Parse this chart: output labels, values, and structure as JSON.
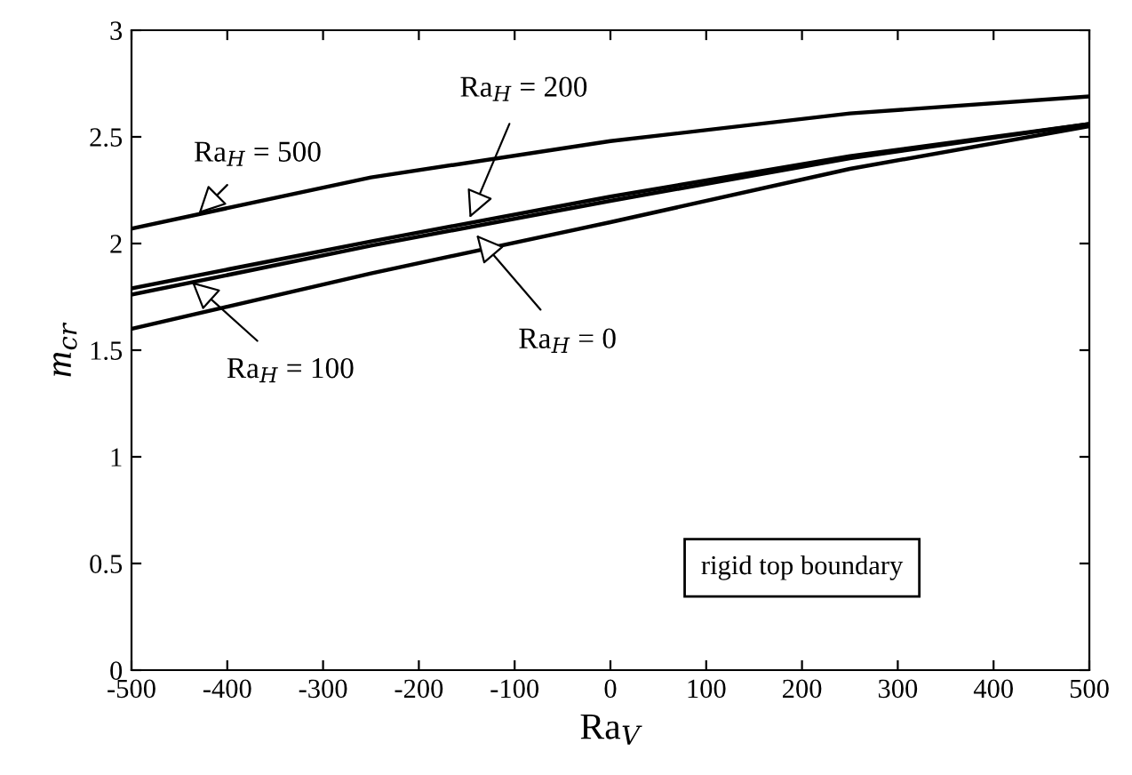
{
  "chart_data": {
    "type": "line",
    "xlabel": "Ra$_{V}$",
    "ylabel": "m$_{cr}$",
    "x": [
      -500,
      -250,
      0,
      250,
      500
    ],
    "series": [
      {
        "color": "#000000",
        "values": [
          2.07,
          2.31,
          2.48,
          2.61,
          2.69
        ]
      },
      {
        "color": "#000000",
        "values": [
          1.79,
          2.01,
          2.22,
          2.41,
          2.56
        ]
      },
      {
        "color": "#000000",
        "values": [
          1.76,
          1.99,
          2.2,
          2.4,
          2.56
        ]
      },
      {
        "color": "#000000",
        "values": [
          1.6,
          1.86,
          2.1,
          2.35,
          2.55
        ]
      }
    ],
    "annotations": [
      {
        "text": "Ra$_{H}$ = 500",
        "x": -430,
        "y": 2.14
      },
      {
        "text": "Ra$_{H}$ = 200",
        "x": -147,
        "y": 2.12
      },
      {
        "text": "Ra$_{H}$ = 100",
        "x": -437,
        "y": 1.82
      },
      {
        "text": "Ra$_{H}$ = 0",
        "x": -140,
        "y": 2.04
      },
      "rigid top boundary"
    ],
    "xlim": [
      -500,
      500
    ],
    "ylim": [
      0,
      3
    ],
    "xticks": [
      -500,
      -400,
      -300,
      -200,
      -100,
      0,
      100,
      200,
      300,
      400,
      500
    ],
    "yticks": [
      0,
      0.5,
      1,
      1.5,
      2,
      2.5,
      3
    ],
    "grid": false,
    "legend": false,
    "marker": "none",
    "line_style": "solid"
  }
}
